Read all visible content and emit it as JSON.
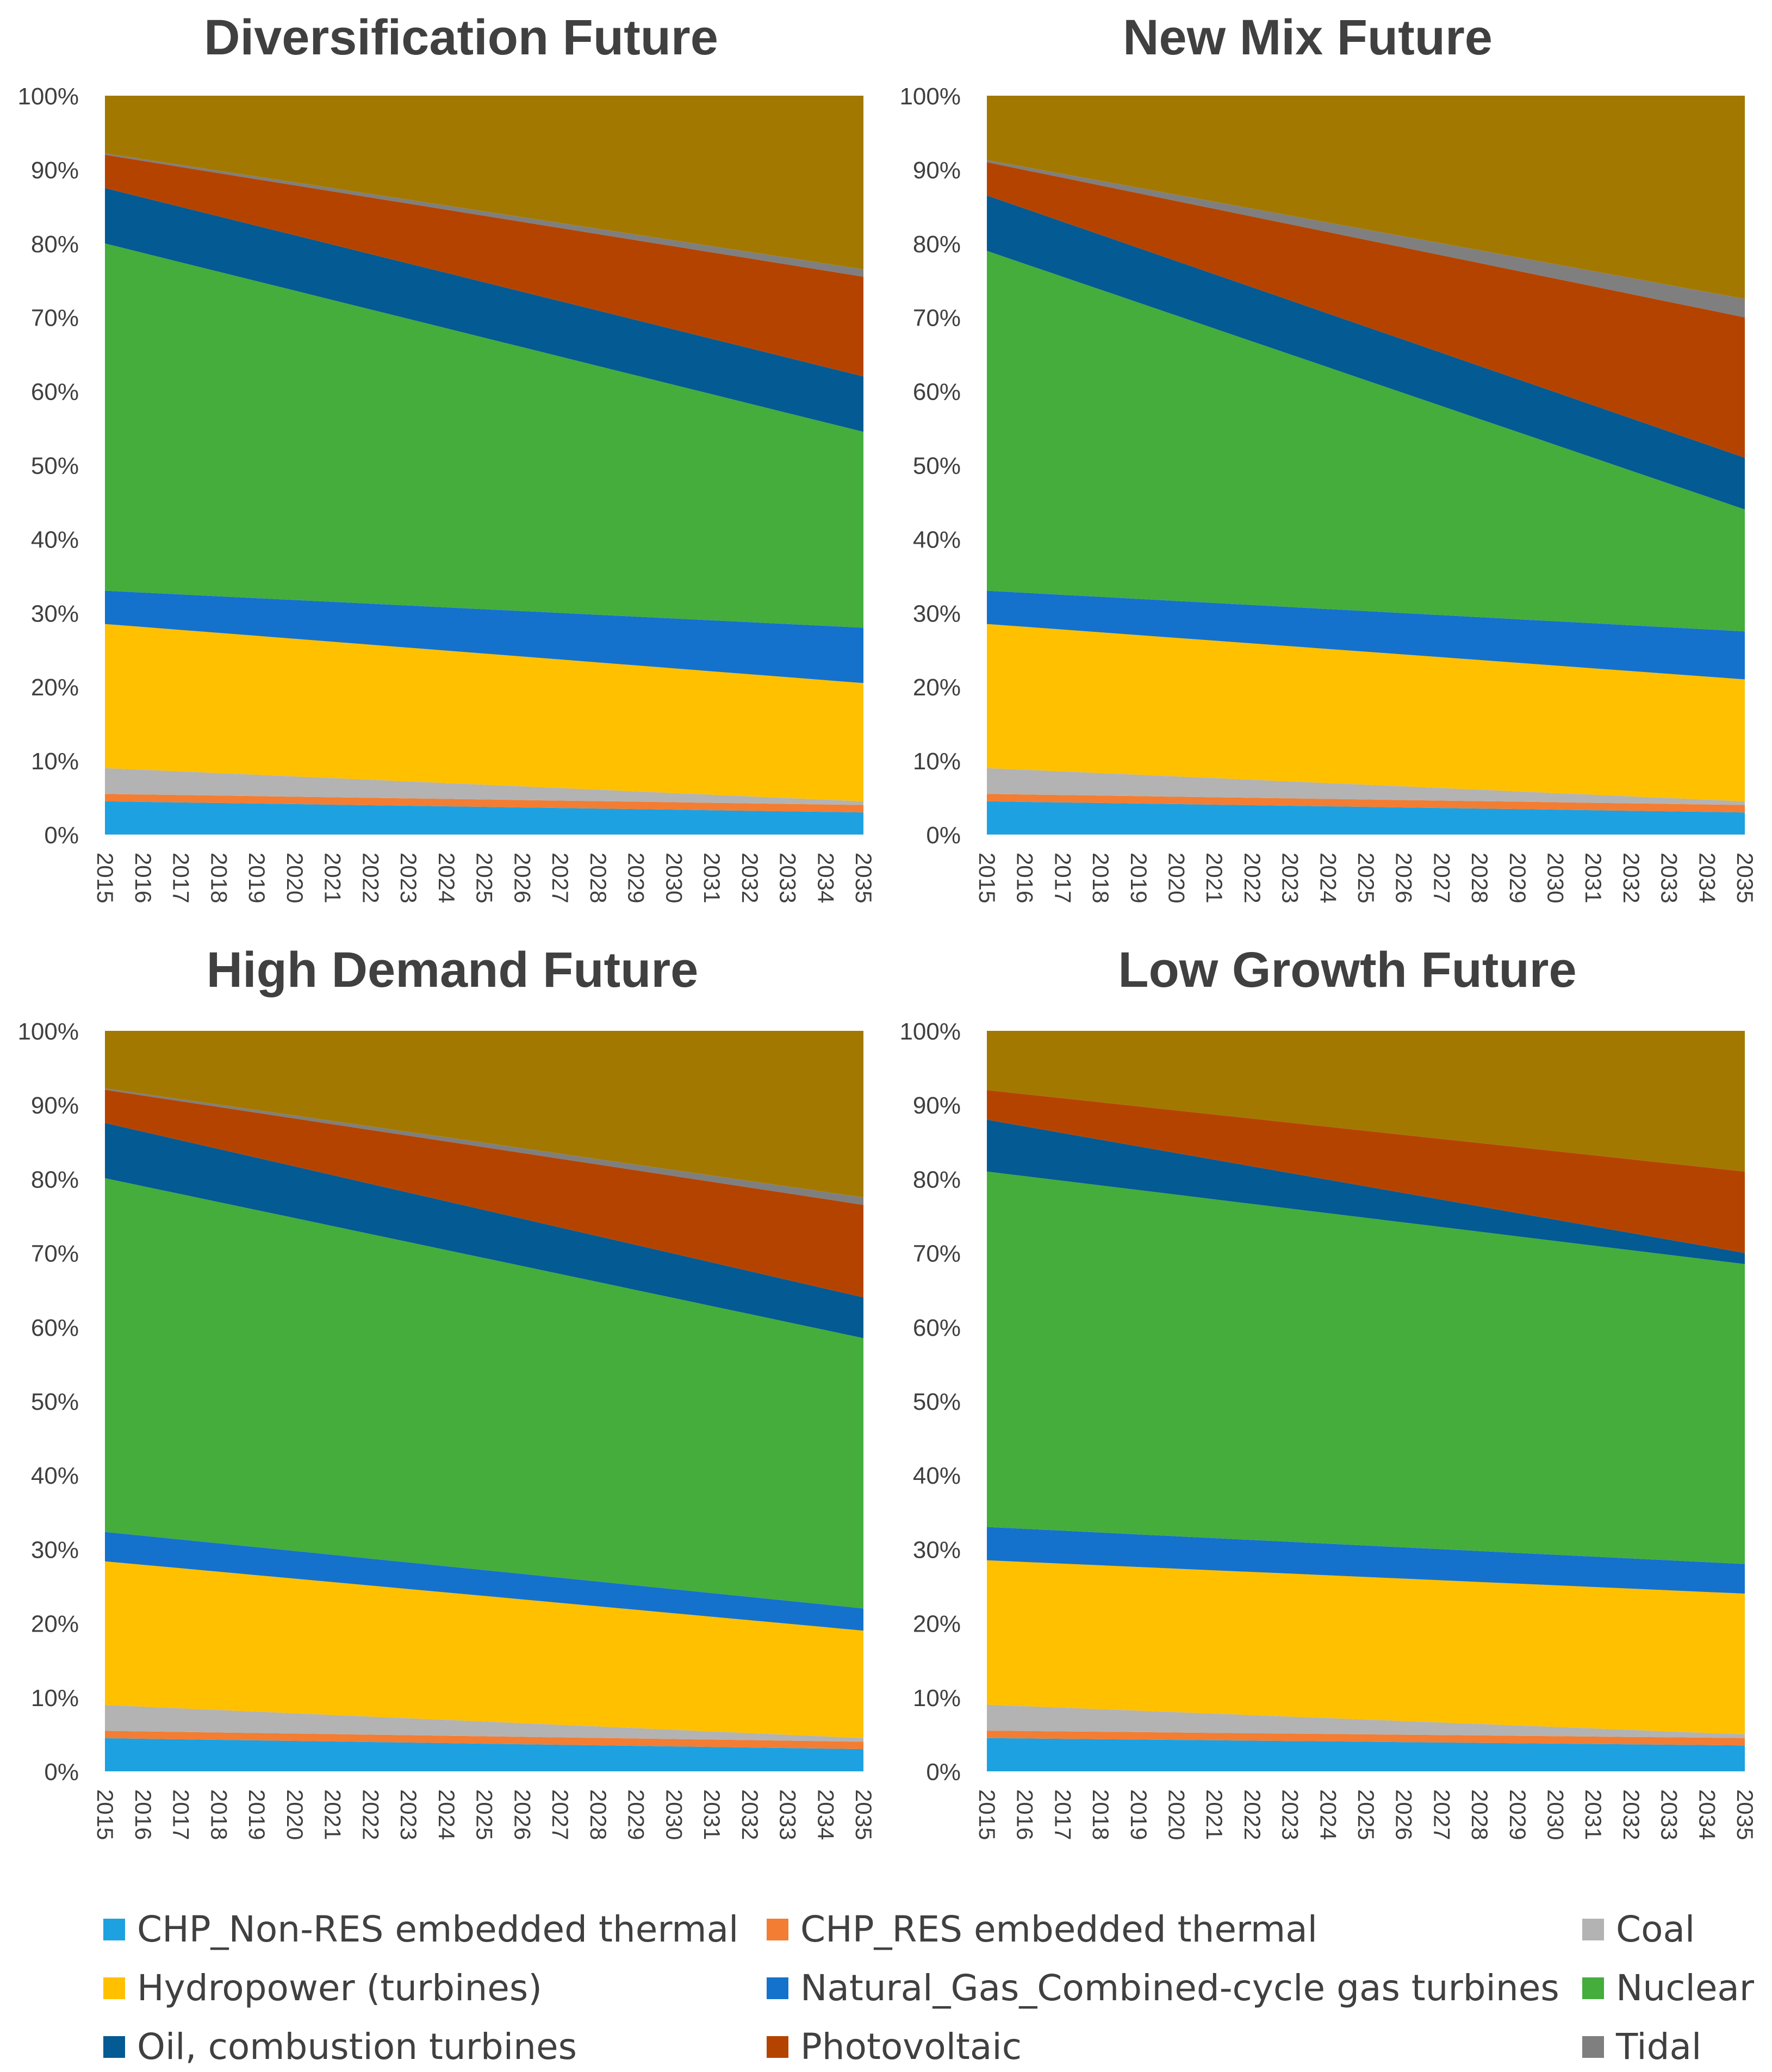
{
  "series_colors": {
    "chp_nonres": "#1ea1e0",
    "chp_res": "#f37d32",
    "coal": "#b3b3b3",
    "hydro": "#ffc000",
    "gas": "#1472cc",
    "nuclear": "#44ad3c",
    "oil": "#045a92",
    "pv": "#b54300",
    "tidal": "#7f7f7f",
    "top": "#a37800"
  },
  "legend": [
    {
      "key": "chp_nonres",
      "label": "CHP_Non-RES embedded thermal"
    },
    {
      "key": "chp_res",
      "label": "CHP_RES embedded thermal"
    },
    {
      "key": "coal",
      "label": "Coal"
    },
    {
      "key": "hydro",
      "label": "Hydropower (turbines)"
    },
    {
      "key": "gas",
      "label": "Natural_Gas_Combined-cycle gas turbines"
    },
    {
      "key": "nuclear",
      "label": "Nuclear"
    },
    {
      "key": "oil",
      "label": "Oil, combustion turbines"
    },
    {
      "key": "pv",
      "label": "Photovoltaic"
    },
    {
      "key": "tidal",
      "label": "Tidal"
    }
  ],
  "chart_data": [
    {
      "type": "area",
      "stacked": "percent",
      "title": "Diversification Future",
      "categories": [
        "2015",
        "2016",
        "2017",
        "2018",
        "2019",
        "2020",
        "2021",
        "2022",
        "2023",
        "2024",
        "2025",
        "2026",
        "2027",
        "2028",
        "2029",
        "2030",
        "2031",
        "2032",
        "2033",
        "2034",
        "2035"
      ],
      "ylim": [
        0,
        100
      ],
      "ytick_labels": [
        "0%",
        "10%",
        "20%",
        "30%",
        "40%",
        "50%",
        "60%",
        "70%",
        "80%",
        "90%",
        "100%"
      ],
      "series_start_end": [
        {
          "key": "chp_nonres",
          "start": 4.5,
          "end": 3.0
        },
        {
          "key": "chp_res",
          "start": 1.0,
          "end": 1.0
        },
        {
          "key": "coal",
          "start": 3.5,
          "end": 0.5
        },
        {
          "key": "hydro",
          "start": 19.5,
          "end": 16.0
        },
        {
          "key": "gas",
          "start": 4.5,
          "end": 7.5
        },
        {
          "key": "nuclear",
          "start": 47.0,
          "end": 26.5
        },
        {
          "key": "oil",
          "start": 7.5,
          "end": 7.5
        },
        {
          "key": "pv",
          "start": 4.5,
          "end": 13.5
        },
        {
          "key": "tidal",
          "start": 0.2,
          "end": 1.0
        },
        {
          "key": "top",
          "start": 7.8,
          "end": 23.5
        }
      ]
    },
    {
      "type": "area",
      "stacked": "percent",
      "title": "New Mix Future",
      "categories": [
        "2015",
        "2016",
        "2017",
        "2018",
        "2019",
        "2020",
        "2021",
        "2022",
        "2023",
        "2024",
        "2025",
        "2026",
        "2027",
        "2028",
        "2029",
        "2030",
        "2031",
        "2032",
        "2033",
        "2034",
        "2035"
      ],
      "ylim": [
        0,
        100
      ],
      "ytick_labels": [
        "0%",
        "10%",
        "20%",
        "30%",
        "40%",
        "50%",
        "60%",
        "70%",
        "80%",
        "90%",
        "100%"
      ],
      "series_start_end": [
        {
          "key": "chp_nonres",
          "start": 4.5,
          "end": 3.0
        },
        {
          "key": "chp_res",
          "start": 1.0,
          "end": 1.0
        },
        {
          "key": "coal",
          "start": 3.5,
          "end": 0.5
        },
        {
          "key": "hydro",
          "start": 19.5,
          "end": 16.5
        },
        {
          "key": "gas",
          "start": 4.5,
          "end": 6.5
        },
        {
          "key": "nuclear",
          "start": 46.0,
          "end": 16.5
        },
        {
          "key": "oil",
          "start": 7.5,
          "end": 7.0
        },
        {
          "key": "pv",
          "start": 4.5,
          "end": 19.0
        },
        {
          "key": "tidal",
          "start": 0.3,
          "end": 2.5
        },
        {
          "key": "top",
          "start": 8.7,
          "end": 27.5
        }
      ]
    },
    {
      "type": "area",
      "stacked": "percent",
      "title": "High Demand Future",
      "categories": [
        "2015",
        "2016",
        "2017",
        "2018",
        "2019",
        "2020",
        "2021",
        "2022",
        "2023",
        "2024",
        "2025",
        "2026",
        "2027",
        "2028",
        "2029",
        "2030",
        "2031",
        "2032",
        "2033",
        "2034",
        "2035"
      ],
      "ylim": [
        0,
        100
      ],
      "ytick_labels": [
        "0%",
        "10%",
        "20%",
        "30%",
        "40%",
        "50%",
        "60%",
        "70%",
        "80%",
        "90%",
        "100%"
      ],
      "series_start_end": [
        {
          "key": "chp_nonres",
          "start": 4.5,
          "end": 3.0
        },
        {
          "key": "chp_res",
          "start": 1.0,
          "end": 1.0
        },
        {
          "key": "coal",
          "start": 3.5,
          "end": 0.5
        },
        {
          "key": "hydro",
          "start": 19.5,
          "end": 14.5
        },
        {
          "key": "gas",
          "start": 4.0,
          "end": 3.0
        },
        {
          "key": "nuclear",
          "start": 48.0,
          "end": 36.5
        },
        {
          "key": "oil",
          "start": 7.5,
          "end": 5.5
        },
        {
          "key": "pv",
          "start": 4.5,
          "end": 12.5
        },
        {
          "key": "tidal",
          "start": 0.2,
          "end": 1.0
        },
        {
          "key": "top",
          "start": 7.8,
          "end": 22.5
        }
      ]
    },
    {
      "type": "area",
      "stacked": "percent",
      "title": "Low Growth Future",
      "categories": [
        "2015",
        "2016",
        "2017",
        "2018",
        "2019",
        "2020",
        "2021",
        "2022",
        "2023",
        "2024",
        "2025",
        "2026",
        "2027",
        "2028",
        "2029",
        "2030",
        "2031",
        "2032",
        "2033",
        "2034",
        "2035"
      ],
      "ylim": [
        0,
        100
      ],
      "ytick_labels": [
        "0%",
        "10%",
        "20%",
        "30%",
        "40%",
        "50%",
        "60%",
        "70%",
        "80%",
        "90%",
        "100%"
      ],
      "series_start_end": [
        {
          "key": "chp_nonres",
          "start": 4.5,
          "end": 3.5
        },
        {
          "key": "chp_res",
          "start": 1.0,
          "end": 1.0
        },
        {
          "key": "coal",
          "start": 3.5,
          "end": 0.5
        },
        {
          "key": "hydro",
          "start": 19.5,
          "end": 19.0
        },
        {
          "key": "gas",
          "start": 4.5,
          "end": 4.0
        },
        {
          "key": "nuclear",
          "start": 48.0,
          "end": 40.5
        },
        {
          "key": "oil",
          "start": 7.0,
          "end": 1.5
        },
        {
          "key": "pv",
          "start": 4.0,
          "end": 11.0
        },
        {
          "key": "tidal",
          "start": 0.0,
          "end": 0.0
        },
        {
          "key": "top",
          "start": 8.0,
          "end": 19.0
        }
      ]
    }
  ]
}
